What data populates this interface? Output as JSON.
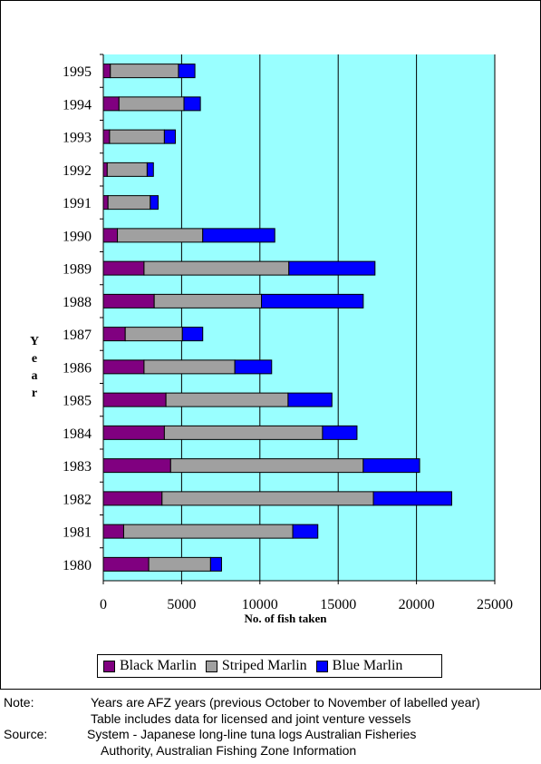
{
  "chart_data": {
    "type": "bar",
    "orientation": "horizontal",
    "stacked": true,
    "xlabel": "No. of fish taken",
    "ylabel": "Year",
    "xlim": [
      0,
      25000
    ],
    "x_ticks": [
      "0",
      "5000",
      "10000",
      "15000",
      "20000",
      "25000"
    ],
    "grid": "vertical",
    "legend_position": "bottom",
    "categories": [
      "1995",
      "1994",
      "1993",
      "1992",
      "1991",
      "1990",
      "1989",
      "1988",
      "1987",
      "1986",
      "1985",
      "1984",
      "1983",
      "1982",
      "1981",
      "1980"
    ],
    "series": [
      {
        "name": "Black Marlin",
        "color": "#800080",
        "values": [
          450,
          1000,
          400,
          250,
          300,
          900,
          2600,
          3250,
          1400,
          2600,
          4000,
          3900,
          4300,
          3750,
          1300,
          2900
        ]
      },
      {
        "name": "Striped Marlin",
        "color": "#a0a0a0",
        "values": [
          4350,
          4150,
          3500,
          2550,
          2700,
          5450,
          9250,
          6850,
          3650,
          5800,
          7800,
          10100,
          12300,
          13500,
          10800,
          3950
        ]
      },
      {
        "name": "Blue Marlin",
        "color": "#0000ff",
        "values": [
          1050,
          1050,
          700,
          400,
          500,
          4600,
          5500,
          6500,
          1300,
          2350,
          2800,
          2200,
          3600,
          5000,
          1600,
          700
        ]
      }
    ]
  },
  "colors": {
    "plot_background": "#99ffff",
    "grid_line": "#000000"
  },
  "notes": {
    "note_label": "Note:",
    "note_line1": "Years are AFZ years (previous October to November of labelled year)",
    "note_line2": "Table includes data for licensed and joint venture vessels",
    "source_label": "Source:",
    "source_line1": "System - Japanese long-line tuna logs Australian Fisheries",
    "source_line2": "Authority, Australian Fishing Zone Information"
  }
}
